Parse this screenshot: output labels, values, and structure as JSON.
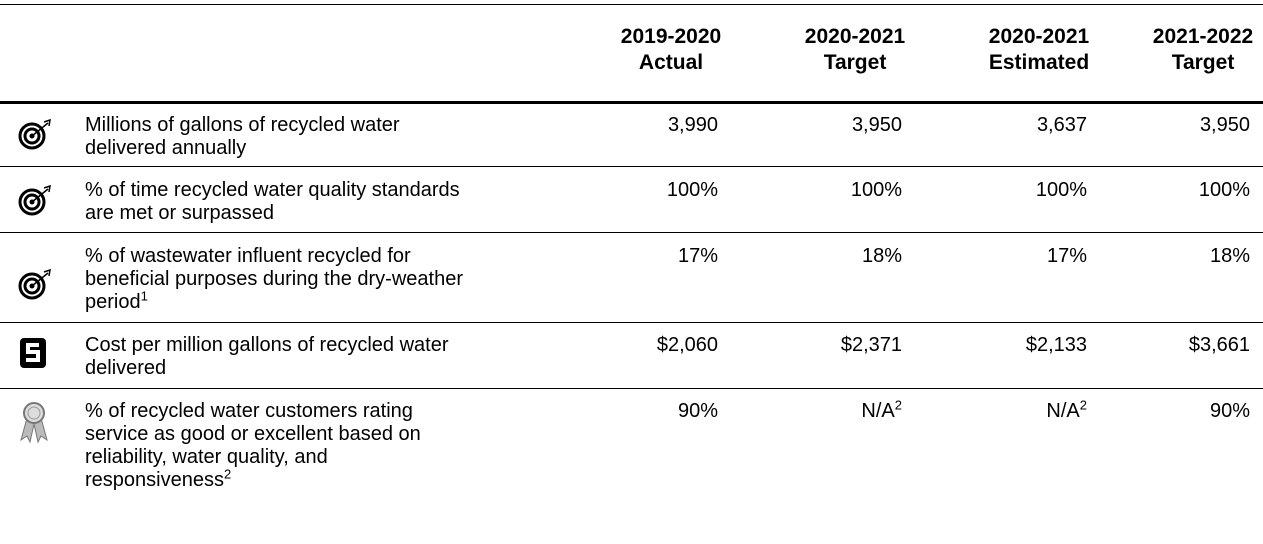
{
  "table": {
    "columns": [
      [
        "2019-2020",
        "Actual"
      ],
      [
        "2020-2021",
        "Target"
      ],
      [
        "2020-2021",
        "Estimated"
      ],
      [
        "2021-2022",
        "Target"
      ]
    ],
    "rows": [
      {
        "label": [
          "Millions of gallons of recycled water",
          "delivered annually"
        ],
        "values": [
          "3,990",
          "3,950",
          "3,637",
          "3,950"
        ]
      },
      {
        "label": [
          "% of time recycled water quality standards",
          "are met or surpassed"
        ],
        "values": [
          "100%",
          "100%",
          "100%",
          "100%"
        ]
      },
      {
        "label": [
          "% of wastewater influent recycled for",
          "beneficial purposes during the dry-weather",
          "period"
        ],
        "note": "1",
        "values": [
          "17%",
          "18%",
          "17%",
          "18%"
        ]
      },
      {
        "label": [
          "Cost per million gallons of recycled water",
          "delivered"
        ],
        "values": [
          "$2,060",
          "$2,371",
          "$2,133",
          "$3,661"
        ]
      },
      {
        "label": [
          "% of recycled water customers rating",
          "service as good or excellent based on",
          "reliability, water quality, and",
          "responsiveness"
        ],
        "note": "2",
        "values": [
          "90%",
          {
            "text": "N/A",
            "note": "2"
          },
          {
            "text": "N/A",
            "note": "2"
          },
          "90%"
        ]
      }
    ]
  }
}
